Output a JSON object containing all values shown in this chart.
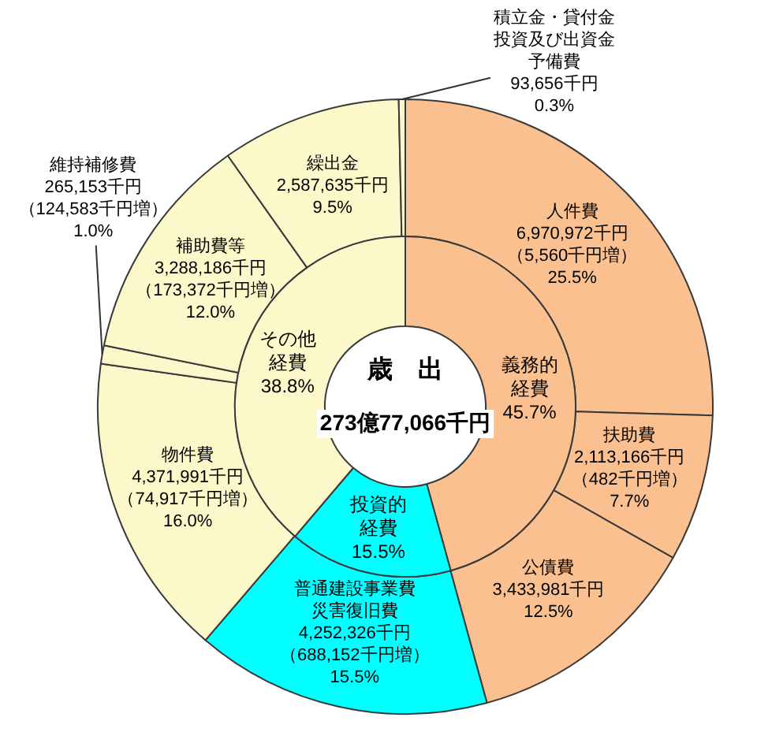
{
  "chart_data": [
    {
      "type": "donut",
      "categories": [
        "人件費",
        "扶助費",
        "公債費",
        "普通建設事業費災害復旧費",
        "物件費",
        "維持補修費",
        "補助費等",
        "繰出金",
        "積立金・貸付金投資及び出資金予備費"
      ],
      "values": [
        6970972,
        2113166,
        3433981,
        4252326,
        4371991,
        265153,
        3288186,
        2587635,
        93656
      ],
      "colors": [
        "#fac090",
        "#fac090",
        "#fac090",
        "#00ffff",
        "#fcf8c9",
        "#fcf8c9",
        "#fcf8c9",
        "#fcf8c9",
        "#fcf8c9"
      ],
      "value_labels": [
        "6,970,972千円（5,560千円増）25.5%",
        "2,113,166千円（482千円増）7.7%",
        "3,433,981千円12.5%",
        "4,252,326千円（688,152千円増）15.5%",
        "4,371,991千円（74,917千円増）16.0%",
        "265,153千円（124,583千円増）1.0%",
        "3,288,186千円（173,372千円増）12.0%",
        "2,587,635千円9.5%",
        "93,656千円0.3%"
      ]
    },
    {
      "type": "donut",
      "title": "歳　出",
      "annotations": [
        "273億77,066千円"
      ],
      "categories": [
        "義務的経費",
        "投資的経費",
        "その他経費"
      ],
      "values": [
        45.7,
        15.5,
        38.8
      ],
      "colors": [
        "#fac090",
        "#00ffff",
        "#fcf8c9"
      ],
      "value_labels": [
        "45.7%",
        "15.5%",
        "38.8%"
      ]
    }
  ]
}
